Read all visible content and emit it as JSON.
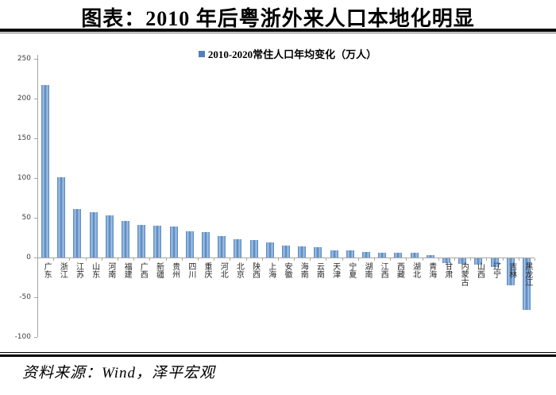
{
  "page": {
    "title": "图表：2010 年后粤浙外来人口本地化明显",
    "source": "资料来源：Wind，泽平宏观"
  },
  "legend": {
    "label": "2010-2020常住人口年均变化（万人）"
  },
  "colors": {
    "bar_main": "#4f81bd",
    "bar_light": "#a9c6e5",
    "axis": "#a6a6a6",
    "tick_label": "#404040",
    "title_text": "#000000"
  },
  "chart_data": {
    "type": "bar",
    "title": "2010-2020常住人口年均变化（万人）",
    "ylabel": "万人",
    "xlabel": "",
    "ylim": [
      -100,
      250
    ],
    "yticks": [
      250,
      200,
      150,
      100,
      50,
      0,
      -50,
      -100
    ],
    "grid": false,
    "legend_position": "top-center",
    "categories": [
      "广东",
      "浙江",
      "江苏",
      "山东",
      "河南",
      "福建",
      "广西",
      "新疆",
      "贵州",
      "四川",
      "重庆",
      "河北",
      "北京",
      "陕西",
      "上海",
      "安徽",
      "海南",
      "云南",
      "天津",
      "宁夏",
      "湖南",
      "江西",
      "西藏",
      "湖北",
      "青海",
      "甘肃",
      "内蒙古",
      "山西",
      "辽宁",
      "吉林",
      "黑龙江"
    ],
    "values": [
      217,
      101,
      61,
      57,
      53,
      46,
      41,
      40,
      39,
      33,
      32,
      27,
      23,
      22,
      19,
      15,
      14,
      13,
      9,
      9,
      7,
      6,
      6,
      6,
      3,
      -6,
      -7,
      -8,
      -11,
      -34,
      -65
    ]
  }
}
